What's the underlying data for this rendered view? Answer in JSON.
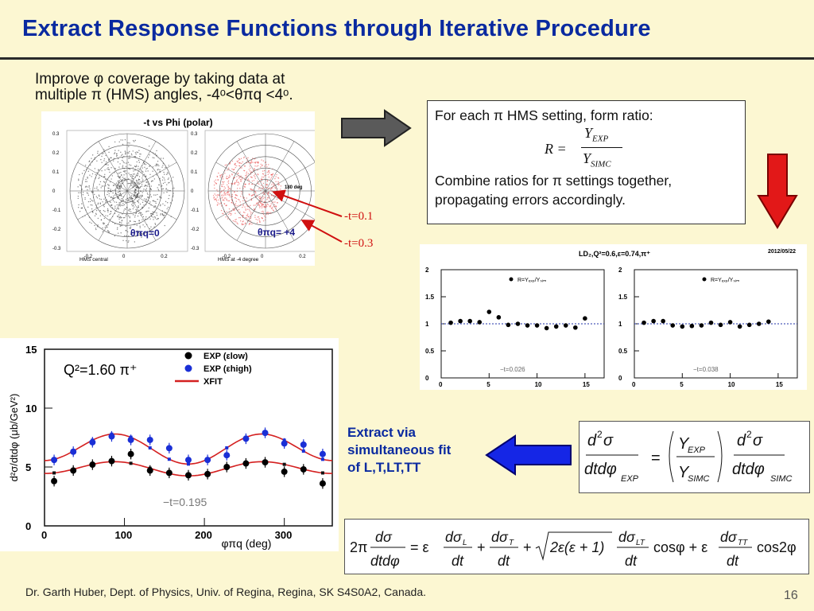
{
  "slide": {
    "title": "Extract Response Functions through Iterative Procedure",
    "intro_line1": "Improve φ coverage by taking data at",
    "intro_line2": "multiple π (HMS) angles, -4ᵒ<θπq <4ᵒ.",
    "footer": "Dr. Garth Huber, Dept. of Physics, Univ. of Regina, Regina, SK S4S0A2, Canada.",
    "page_number": "16"
  },
  "polar": {
    "title": "-t vs Phi (polar)",
    "yticks": [
      "0.3",
      "0.2",
      "0.1",
      "0",
      "-0.1",
      "-0.2",
      "-0.3"
    ],
    "xticks": [
      "-0.2",
      "0",
      "0.2"
    ],
    "left_caption": "HMS central",
    "right_caption": "HMS at -4 degree",
    "left_label": "θπq=0",
    "right_label": "θπq= +4",
    "angle_label": "180 deg",
    "annot_inner": "-t=0.1",
    "annot_outer": "-t=0.3"
  },
  "ratio_box": {
    "line1": "For each π HMS setting, form ratio:",
    "formula_lhs": "R =",
    "formula_num": "Y",
    "formula_num_sub": "EXP",
    "formula_den": "Y",
    "formula_den_sub": "SIMC",
    "line2": "Combine ratios for π settings together,",
    "line3": "propagating errors accordingly."
  },
  "ratio_plot": {
    "header": "LD₂,Q²=0.6,ε=0.74,π⁺",
    "date": "2012/05/22",
    "legend": "R=Yₑₓₚ/Yₛᵢₘ",
    "yticks": [
      "2",
      "1.5",
      "1",
      "0.5",
      "0"
    ],
    "xticks": [
      "0",
      "5",
      "10",
      "15"
    ],
    "left_t": "−t=0.026",
    "right_t": "−t=0.038",
    "left_points": [
      1.02,
      1.05,
      1.05,
      1.03,
      1.22,
      1.12,
      0.98,
      1.0,
      0.97,
      0.97,
      0.92,
      0.95,
      0.97,
      0.93,
      1.1
    ],
    "right_points": [
      1.02,
      1.05,
      1.05,
      0.97,
      0.95,
      0.96,
      0.97,
      1.02,
      0.98,
      1.03,
      0.95,
      0.98,
      1.0,
      1.04
    ]
  },
  "xs_plot": {
    "q2_label": "Q²=1.60 π⁺",
    "ylabel": "d²σ/dtdφ (μb/GeV²)",
    "xlabel": "φπq (deg)",
    "yticks": [
      "15",
      "10",
      "5",
      "0"
    ],
    "xticks": [
      "0",
      "100",
      "200",
      "300"
    ],
    "legend": [
      "EXP (εlow)",
      "EXP (εhigh)",
      "XFIT"
    ],
    "t_label": "−t=0.195",
    "colors": {
      "low": "#000000",
      "high": "#1a2fd6",
      "fit": "#d42020"
    },
    "low_points": [
      [
        12,
        3.8
      ],
      [
        36,
        4.7
      ],
      [
        60,
        5.2
      ],
      [
        84,
        5.5
      ],
      [
        108,
        6.1
      ],
      [
        132,
        4.7
      ],
      [
        156,
        4.5
      ],
      [
        180,
        4.3
      ],
      [
        204,
        4.4
      ],
      [
        228,
        5.0
      ],
      [
        252,
        5.3
      ],
      [
        276,
        5.4
      ],
      [
        300,
        4.6
      ],
      [
        324,
        4.8
      ],
      [
        348,
        3.6
      ]
    ],
    "high_points": [
      [
        12,
        5.6
      ],
      [
        36,
        6.3
      ],
      [
        60,
        7.1
      ],
      [
        84,
        7.6
      ],
      [
        108,
        7.3
      ],
      [
        132,
        7.3
      ],
      [
        156,
        6.6
      ],
      [
        180,
        5.6
      ],
      [
        204,
        5.6
      ],
      [
        228,
        6.0
      ],
      [
        252,
        7.4
      ],
      [
        276,
        7.9
      ],
      [
        300,
        7.0
      ],
      [
        324,
        6.9
      ],
      [
        348,
        6.1
      ]
    ]
  },
  "extract": {
    "line1": "Extract via",
    "line2": "simultaneous fit",
    "line3": "of L,T,LT,TT"
  }
}
